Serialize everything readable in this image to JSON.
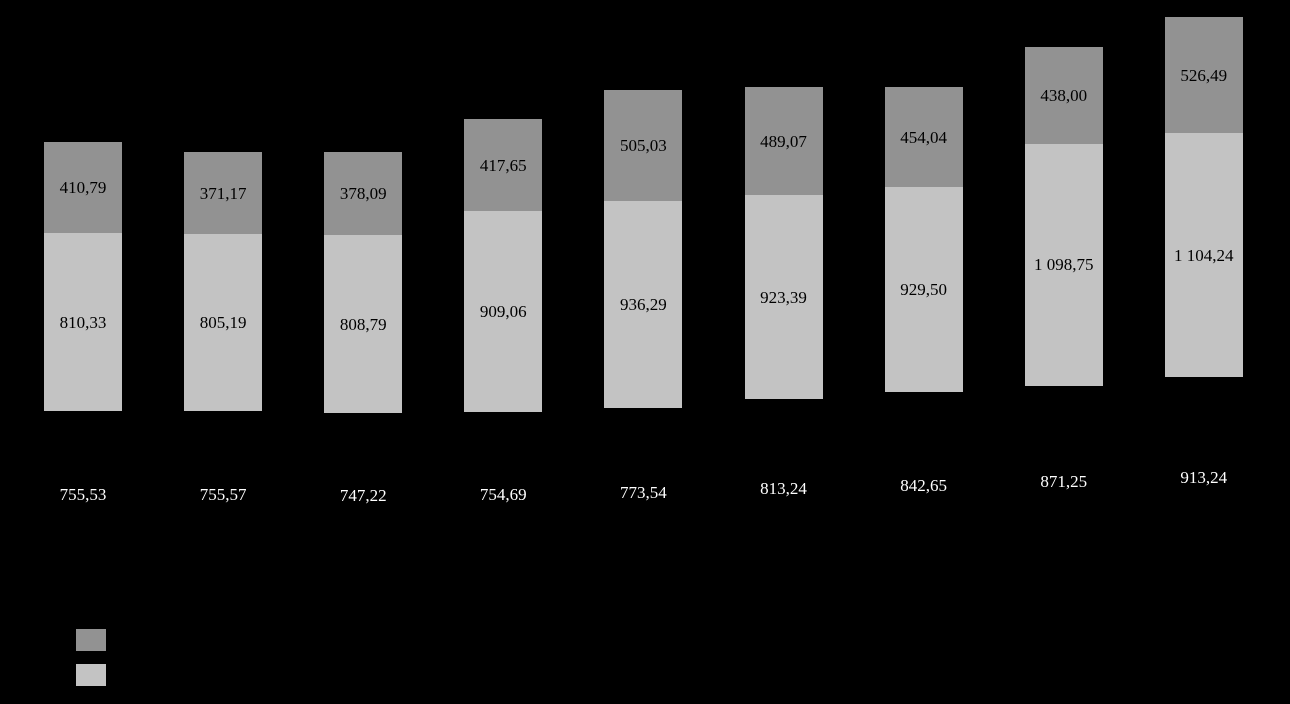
{
  "chart_data": {
    "type": "bar",
    "subtype": "stacked",
    "title": "",
    "xlabel": "",
    "ylabel": "",
    "background_color": "#000000",
    "grid": false,
    "categories": [
      "",
      "",
      "",
      "",
      "",
      "",
      "",
      "",
      ""
    ],
    "series": [
      {
        "name": "base-series",
        "color": "#000000",
        "label_color": "#ffffff",
        "values": [
          755.53,
          755.57,
          747.22,
          754.69,
          773.54,
          813.24,
          842.65,
          871.25,
          913.24
        ],
        "labels": [
          "755,53",
          "755,57",
          "747,22",
          "754,69",
          "773,54",
          "813,24",
          "842,65",
          "871,25",
          "913,24"
        ]
      },
      {
        "name": "middle-series",
        "color": "#c3c3c3",
        "label_color": "#000000",
        "values": [
          810.33,
          805.19,
          808.79,
          909.06,
          936.29,
          923.39,
          929.5,
          1098.75,
          1104.24
        ],
        "labels": [
          "810,33",
          "805,19",
          "808,79",
          "909,06",
          "936,29",
          "923,39",
          "929,50",
          "1 098,75",
          "1 104,24"
        ]
      },
      {
        "name": "top-series",
        "color": "#929292",
        "label_color": "#000000",
        "values": [
          410.79,
          371.17,
          378.09,
          417.65,
          505.03,
          489.07,
          454.04,
          438.0,
          526.49
        ],
        "labels": [
          "410,79",
          "371,17",
          "378,09",
          "417,65",
          "505,03",
          "489,07",
          "454,04",
          "438,00",
          "526,49"
        ]
      }
    ],
    "legend": {
      "position": "bottom-left",
      "items": [
        {
          "name": "top-series-swatch",
          "color": "#929292",
          "label": ""
        },
        {
          "name": "middle-series-swatch",
          "color": "#c3c3c3",
          "label": ""
        }
      ]
    }
  }
}
